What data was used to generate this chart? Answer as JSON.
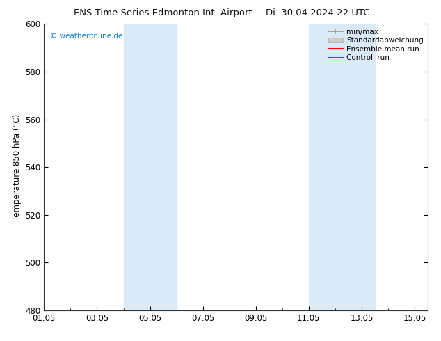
{
  "title_left": "ENS Time Series Edmonton Int. Airport",
  "title_right": "Di. 30.04.2024 22 UTC",
  "ylabel": "Temperature 850 hPa (°C)",
  "ylim": [
    480,
    600
  ],
  "yticks": [
    480,
    500,
    520,
    540,
    560,
    580,
    600
  ],
  "xlim_start": 0.0,
  "xlim_end": 14.5,
  "xtick_positions": [
    0,
    2,
    4,
    6,
    8,
    10,
    12,
    14
  ],
  "xtick_labels": [
    "01.05",
    "03.05",
    "05.05",
    "07.05",
    "09.05",
    "11.05",
    "13.05",
    "15.05"
  ],
  "shade_bands": [
    {
      "xmin": 3.0,
      "xmax": 5.0,
      "color": "#daeaf7"
    },
    {
      "xmin": 10.0,
      "xmax": 12.5,
      "color": "#daeaf7"
    }
  ],
  "watermark": "© weatheronline.de",
  "watermark_color": "#1a7fd4",
  "legend_items": [
    {
      "label": "min/max",
      "color": "#999999",
      "lw": 1.2,
      "type": "line_caps"
    },
    {
      "label": "Standardabweichung",
      "color": "#cccccc",
      "lw": 8,
      "type": "bar"
    },
    {
      "label": "Ensemble mean run",
      "color": "red",
      "lw": 1.5,
      "type": "line"
    },
    {
      "label": "Controll run",
      "color": "green",
      "lw": 1.5,
      "type": "line"
    }
  ],
  "background_color": "#ffffff",
  "plot_bg_color": "#ffffff",
  "figsize": [
    6.34,
    4.9
  ],
  "dpi": 100
}
